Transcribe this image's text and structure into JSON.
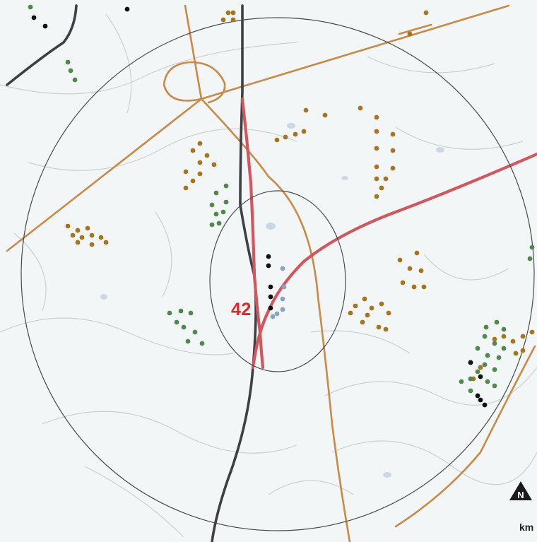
{
  "site": {
    "label": "42"
  },
  "compass": {
    "letter": "N",
    "icon": "north-arrow-icon"
  },
  "scale": {
    "unit": "km"
  },
  "colors": {
    "background": "#f3f6f7",
    "terrain_lines": "#c9d0d6",
    "water": "#a9c1d9",
    "motorway": "#d2575d",
    "rail": "#3f3f45",
    "regional_road": "#c98a45",
    "buffer_ring": "#4a4a4a",
    "site_label": "#e0262a",
    "turbines_brown": "#a8741c",
    "turbines_green": "#4f8a4c",
    "turbines_black": "#111111",
    "turbines_blue": "#8aa3c2"
  },
  "legend_groups": [
    "turbines_brown",
    "turbines_green",
    "turbines_black",
    "turbines_blue"
  ]
}
